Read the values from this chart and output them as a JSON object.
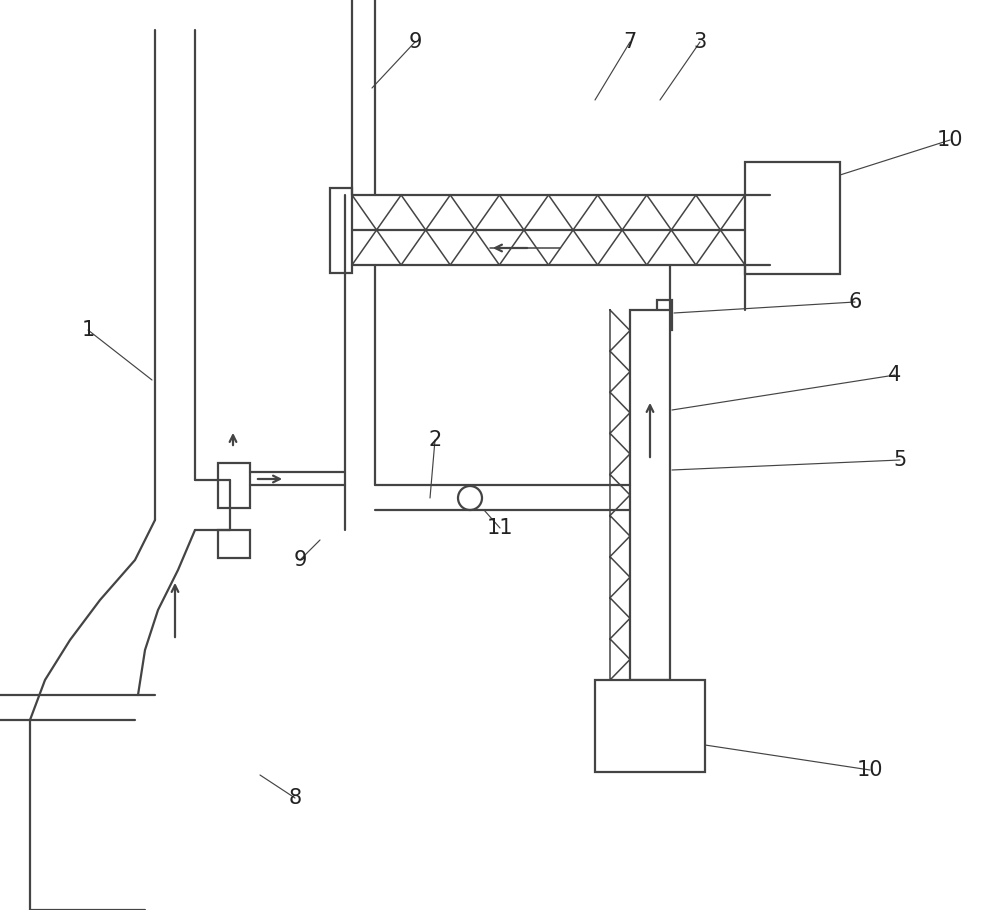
{
  "bg_color": "#ffffff",
  "line_color": "#444444",
  "fig_width": 10.0,
  "fig_height": 9.1,
  "lw": 1.6,
  "lw_thin": 1.1,
  "lw_leader": 0.85
}
